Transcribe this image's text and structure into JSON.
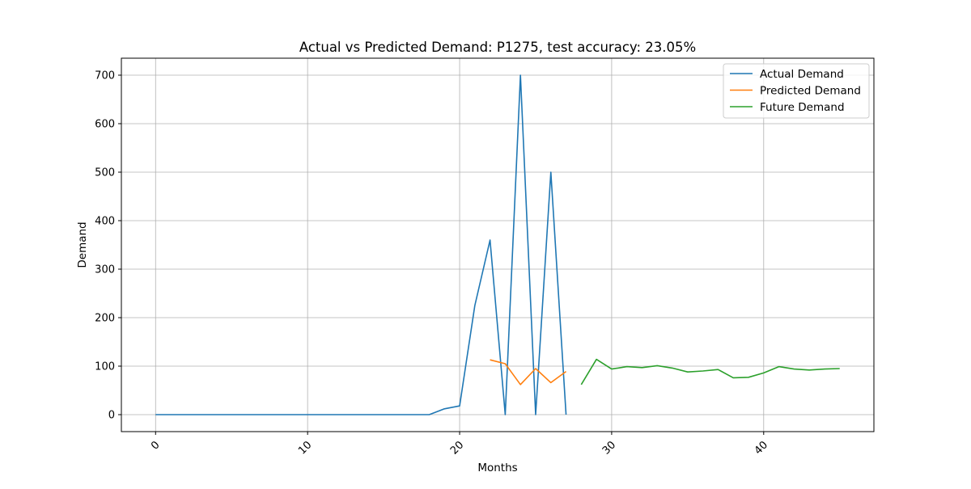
{
  "chart_data": {
    "type": "line",
    "title": "Actual vs Predicted Demand: P1275, test accuracy: 23.05%",
    "xlabel": "Months",
    "ylabel": "Demand",
    "xlim": [
      -2.25,
      47.25
    ],
    "ylim": [
      -35,
      735
    ],
    "xticks": [
      0,
      10,
      20,
      30,
      40
    ],
    "xtick_labels": [
      "0",
      "10",
      "20",
      "30",
      "40"
    ],
    "xtick_rotation": 45,
    "yticks": [
      0,
      100,
      200,
      300,
      400,
      500,
      600,
      700
    ],
    "ytick_labels": [
      "0",
      "100",
      "200",
      "300",
      "400",
      "500",
      "600",
      "700"
    ],
    "grid": true,
    "legend_position": "top-right",
    "series": [
      {
        "name": "Actual Demand",
        "color": "#1f77b4",
        "x": [
          0,
          1,
          2,
          3,
          4,
          5,
          6,
          7,
          8,
          9,
          10,
          11,
          12,
          13,
          14,
          15,
          16,
          17,
          18,
          19,
          20,
          21,
          22,
          23,
          24,
          25,
          26,
          27
        ],
        "values": [
          0,
          0,
          0,
          0,
          0,
          0,
          0,
          0,
          0,
          0,
          0,
          0,
          0,
          0,
          0,
          0,
          0,
          0,
          0,
          12,
          18,
          225,
          360,
          0,
          700,
          0,
          500,
          0
        ]
      },
      {
        "name": "Predicted Demand",
        "color": "#ff7f0e",
        "x": [
          22,
          23,
          24,
          25,
          26,
          27
        ],
        "values": [
          113,
          105,
          62,
          95,
          66,
          89
        ]
      },
      {
        "name": "Future Demand",
        "color": "#2ca02c",
        "x": [
          28,
          29,
          30,
          31,
          32,
          33,
          34,
          35,
          36,
          37,
          38,
          39,
          40,
          41,
          42,
          43,
          44,
          45
        ],
        "values": [
          62,
          114,
          94,
          99,
          97,
          101,
          96,
          88,
          90,
          93,
          76,
          77,
          86,
          99,
          94,
          92,
          94,
          95
        ]
      }
    ]
  }
}
